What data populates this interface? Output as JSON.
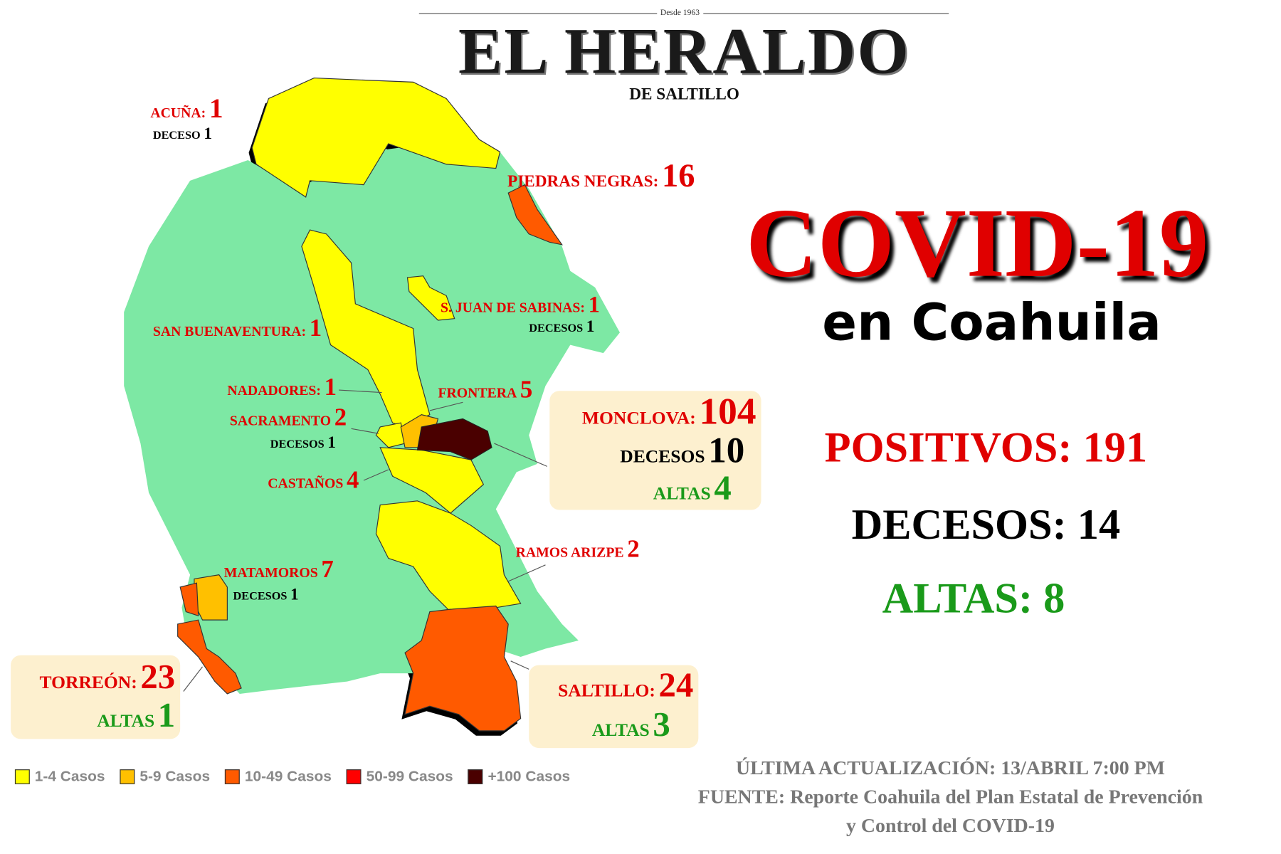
{
  "header": {
    "since": "Desde 1963",
    "title": "EL HERALDO",
    "subtitle": "DE SALTILLO"
  },
  "headline": {
    "title": "COVID-19",
    "subtitle": "en Coahuila"
  },
  "totals": {
    "positivos": "POSITIVOS: 191",
    "decesos": "DECESOS: 14",
    "altas": "ALTAS: 8"
  },
  "colors": {
    "map_base": "#7de8a4",
    "cases_1_4": "#ffff00",
    "cases_5_9": "#ffc000",
    "cases_10_49": "#ff5a00",
    "cases_50_99": "#ff0000",
    "cases_100_plus": "#4a0000",
    "red_text": "#e00000",
    "green_text": "#1a9a1a"
  },
  "municipalities": {
    "acuna": {
      "name": "ACUÑA:",
      "cases": "1",
      "deaths_label": "DECESO",
      "deaths": "1"
    },
    "piedras_negras": {
      "name": "PIEDRAS NEGRAS:",
      "cases": "16"
    },
    "sjuan": {
      "name": "S. JUAN DE SABINAS:",
      "cases": "1",
      "deaths_label": "DECESOS",
      "deaths": "1"
    },
    "san_buenaventura": {
      "name": "SAN BUENAVENTURA:",
      "cases": "1"
    },
    "nadadores": {
      "name": "NADADORES:",
      "cases": "1"
    },
    "frontera": {
      "name": "FRONTERA",
      "cases": "5"
    },
    "sacramento": {
      "name": "SACRAMENTO",
      "cases": "2",
      "deaths_label": "DECESOS",
      "deaths": "1"
    },
    "castanos": {
      "name": "CASTAÑOS",
      "cases": "4"
    },
    "monclova": {
      "name": "MONCLOVA:",
      "cases": "104",
      "deaths_label": "DECESOS",
      "deaths": "10",
      "recovered_label": "ALTAS",
      "recovered": "4"
    },
    "ramos_arizpe": {
      "name": "RAMOS ARIZPE",
      "cases": "2"
    },
    "matamoros": {
      "name": "MATAMOROS",
      "cases": "7",
      "deaths_label": "DECESOS",
      "deaths": "1"
    },
    "torreon": {
      "name": "TORREÓN:",
      "cases": "23",
      "recovered_label": "ALTAS",
      "recovered": "1"
    },
    "saltillo": {
      "name": "SALTILLO:",
      "cases": "24",
      "recovered_label": "ALTAS",
      "recovered": "3"
    }
  },
  "legend": [
    {
      "label": "1-4 Casos",
      "color": "#ffff00"
    },
    {
      "label": "5-9 Casos",
      "color": "#ffc000"
    },
    {
      "label": "10-49 Casos",
      "color": "#ff5a00"
    },
    {
      "label": "50-99 Casos",
      "color": "#ff0000"
    },
    {
      "label": "+100 Casos",
      "color": "#4a0000"
    }
  ],
  "footer": {
    "updated": "ÚLTIMA ACTUALIZACIÓN: 13/ABRIL 7:00 PM",
    "source_line1": "FUENTE: Reporte Coahuila del Plan Estatal de Prevención",
    "source_line2": "y Control del COVID-19"
  }
}
